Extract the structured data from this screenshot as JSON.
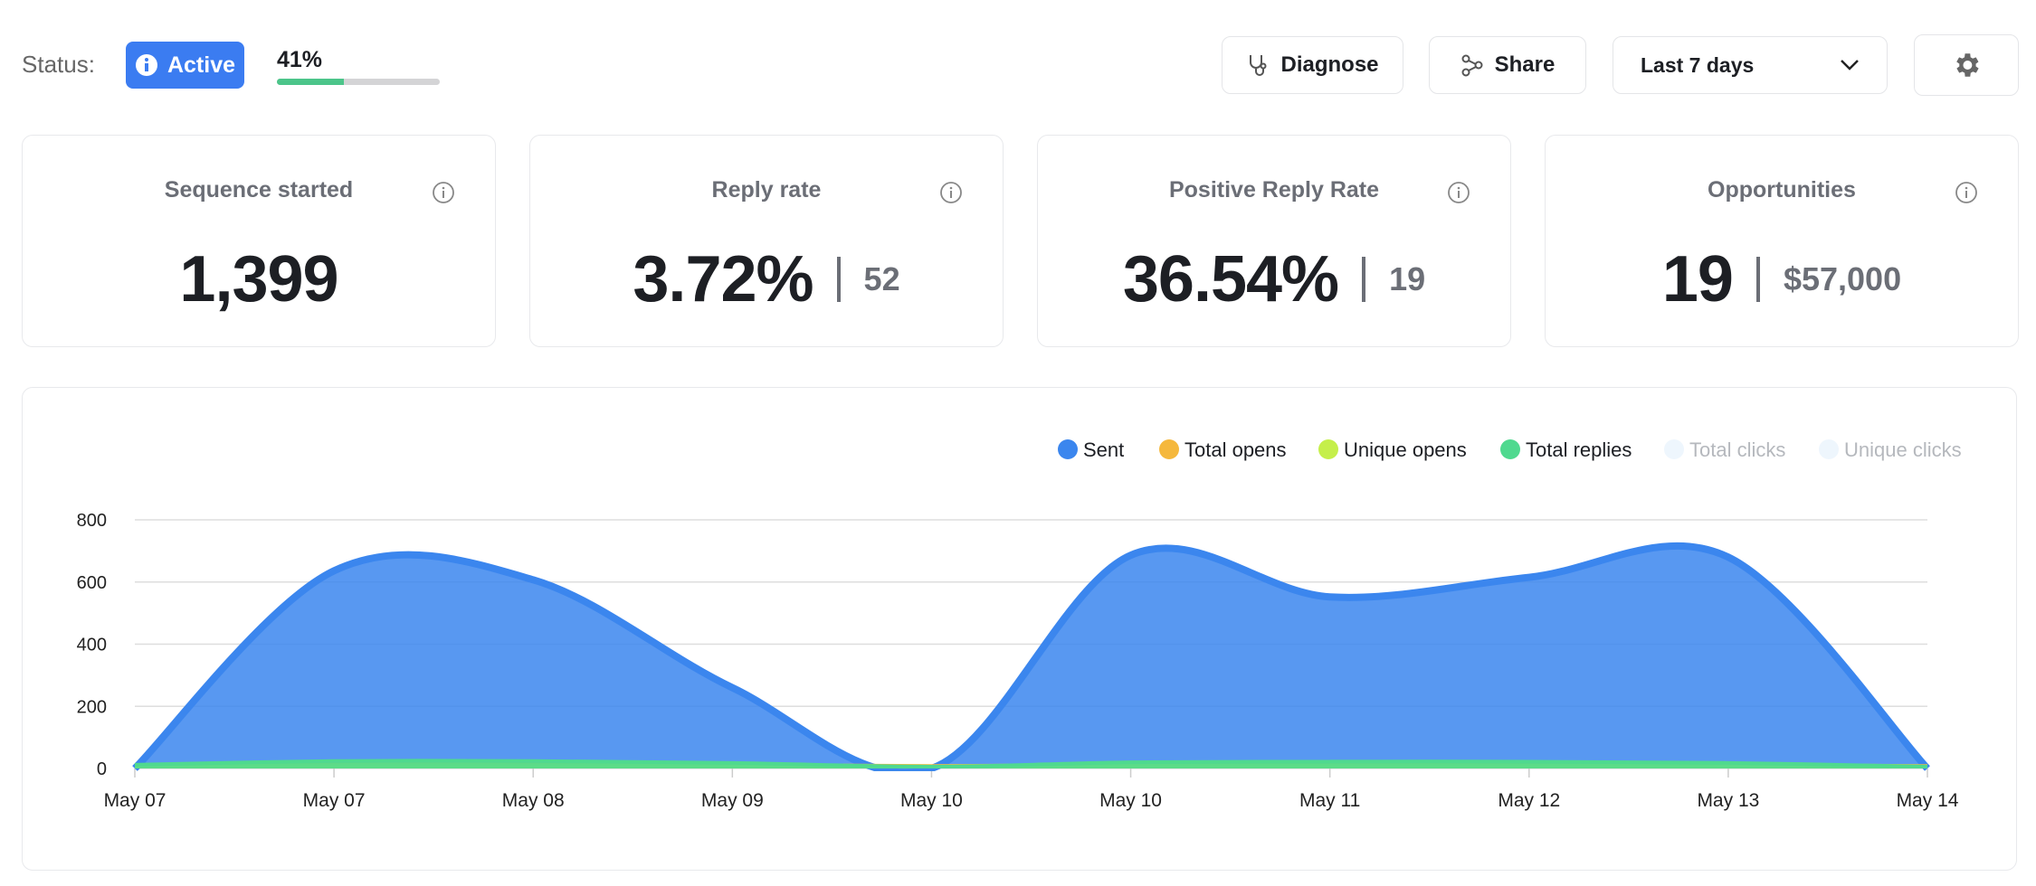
{
  "header": {
    "status_label": "Status:",
    "status": "Active",
    "progress": {
      "value": 41,
      "label": "41%"
    },
    "buttons": [
      "Diagnose",
      "Share"
    ],
    "range": "Last 7 days"
  },
  "stats": [
    {
      "title": "Sequence started",
      "value": "1,399"
    },
    {
      "title": "Reply rate",
      "value": "3.72%",
      "secondary": "52"
    },
    {
      "title": "Positive Reply Rate",
      "value": "36.54%",
      "secondary": "19"
    },
    {
      "title": "Opportunities",
      "value": "19",
      "secondary": "$57,000"
    }
  ],
  "chart_data": {
    "type": "area",
    "categories": [
      "May 07",
      "May 07",
      "May 08",
      "May 09",
      "May 10",
      "May 10",
      "May 11",
      "May 12",
      "May 13",
      "May 14"
    ],
    "series": [
      {
        "name": "Sent",
        "color": "#3b86ee",
        "values": [
          0,
          636,
          607,
          260,
          0,
          686,
          552,
          615,
          680,
          0
        ]
      },
      {
        "name": "Total opens",
        "color": "#f5b83d",
        "values": [
          10,
          14,
          14,
          12,
          8,
          12,
          12,
          12,
          12,
          8
        ]
      },
      {
        "name": "Unique opens",
        "color": "#c5ef4a",
        "values": [
          8,
          10,
          10,
          9,
          6,
          9,
          9,
          9,
          9,
          6
        ]
      },
      {
        "name": "Total replies",
        "color": "#4fd98f",
        "values": [
          12,
          24,
          24,
          18,
          6,
          20,
          22,
          22,
          18,
          6
        ]
      },
      {
        "name": "Total clicks",
        "color": "#eef6fd",
        "hidden": true
      },
      {
        "name": "Unique clicks",
        "color": "#eef6fd",
        "hidden": true
      }
    ],
    "ylim": [
      0,
      800
    ],
    "yticks": [
      0,
      200,
      400,
      600,
      800
    ],
    "grid": true,
    "legend": "top-right"
  }
}
